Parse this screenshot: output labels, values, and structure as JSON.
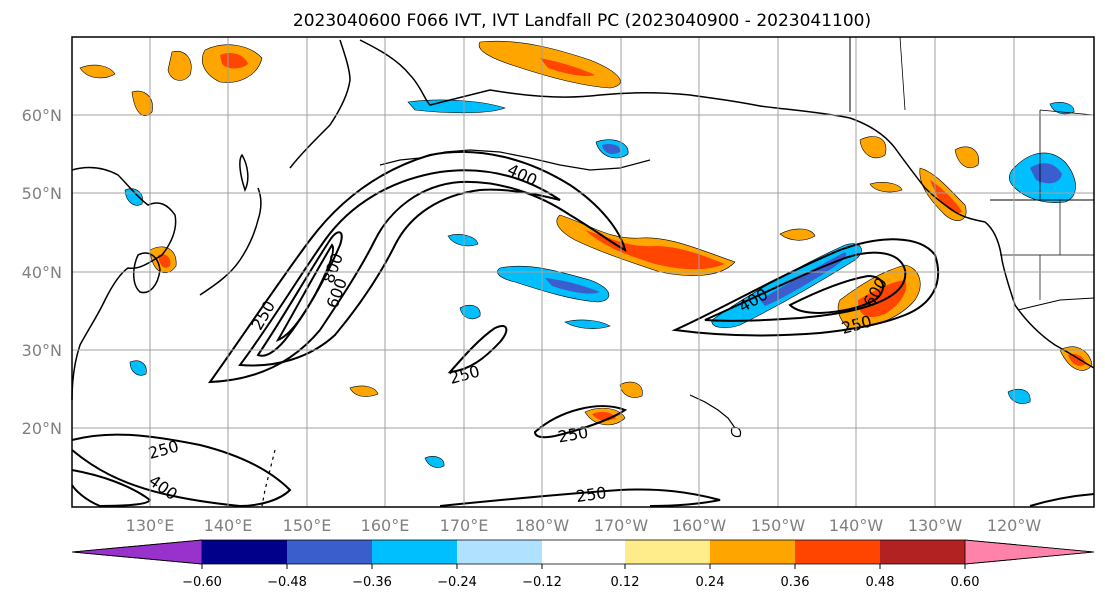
{
  "title": "2023040600 F066 IVT, IVT Landfall PC (2023040900 - 2023041100)",
  "lon_ticks": [
    "130°E",
    "140°E",
    "150°E",
    "160°E",
    "170°E",
    "180°W",
    "170°W",
    "160°W",
    "150°W",
    "140°W",
    "130°W",
    "120°W"
  ],
  "lat_ticks": [
    "60°N",
    "50°N",
    "40°N",
    "30°N",
    "20°N"
  ],
  "colorbar": {
    "tick_labels": [
      "−0.60",
      "−0.48",
      "−0.36",
      "−0.24",
      "−0.12",
      "0.12",
      "0.24",
      "0.36",
      "0.48",
      "0.60"
    ],
    "colors": [
      "#9932cc",
      "#00008b",
      "#3a5fcd",
      "#00bfff",
      "#b0e2ff",
      "#ffffff",
      "#ffec8b",
      "#ffa500",
      "#ff4500",
      "#b22222",
      "#ff82ab"
    ]
  },
  "contour_labels": [
    {
      "text": "400"
    },
    {
      "text": "800"
    },
    {
      "text": "600"
    },
    {
      "text": "250"
    },
    {
      "text": "250"
    },
    {
      "text": "250"
    },
    {
      "text": "400"
    },
    {
      "text": "250"
    },
    {
      "text": "400"
    },
    {
      "text": "600"
    },
    {
      "text": "250"
    },
    {
      "text": "250"
    }
  ]
}
